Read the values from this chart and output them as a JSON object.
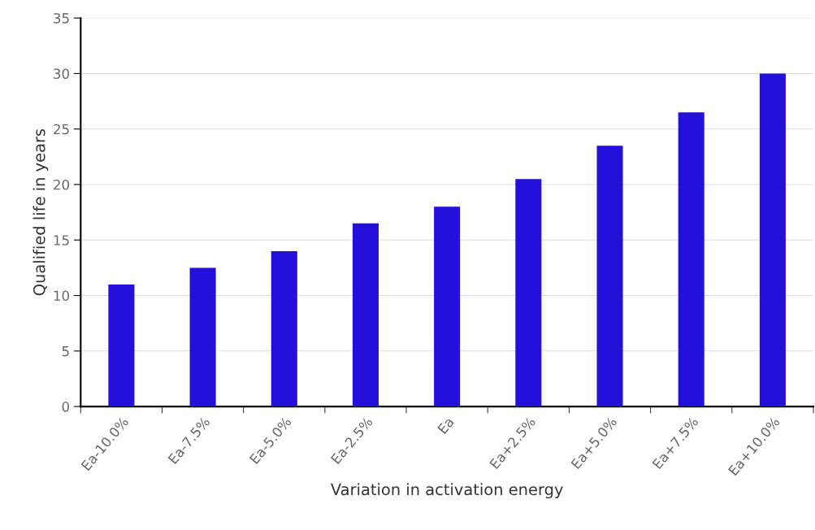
{
  "chart_data": {
    "type": "bar",
    "xlabel": "Variation in activation energy",
    "ylabel": "Qualified life in years",
    "categories": [
      "Ea-10.0%",
      "Ea-7.5%",
      "Ea-5.0%",
      "Ea-2.5%",
      "Ea",
      "Ea+2.5%",
      "Ea+5.0%",
      "Ea+7.5%",
      "Ea+10.0%"
    ],
    "values": [
      11,
      12.5,
      14,
      16.5,
      18,
      20.5,
      23.5,
      26.5,
      30
    ],
    "color": "#2311d9",
    "ylim": [
      0,
      35
    ],
    "yticks": [
      0,
      5,
      10,
      15,
      20,
      25,
      30,
      35
    ],
    "grid": "y"
  }
}
